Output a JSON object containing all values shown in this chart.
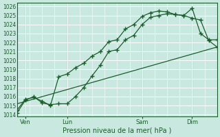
{
  "title": "Pression niveau de la mer( hPa )",
  "ylabel_values": [
    1014,
    1015,
    1016,
    1017,
    1018,
    1019,
    1020,
    1021,
    1022,
    1023,
    1024,
    1025,
    1026
  ],
  "ylim": [
    1013.8,
    1026.4
  ],
  "xlim": [
    0,
    48
  ],
  "background_color": "#c8e8e0",
  "grid_color": "#b0d8d0",
  "line_color": "#1a5c2a",
  "x_tick_labels": [
    "Ven",
    "Lun",
    "Sam",
    "Dim"
  ],
  "x_tick_positions": [
    2,
    12,
    30,
    42
  ],
  "vlines_x": [
    2,
    12,
    30,
    42
  ],
  "line1_x": [
    0,
    2,
    4,
    6,
    8,
    10,
    12,
    14,
    16,
    18,
    20,
    22,
    24,
    26,
    28,
    30,
    32,
    34,
    36,
    38,
    40,
    42,
    44,
    46,
    48
  ],
  "line1_y": [
    1014.2,
    1015.6,
    1016.0,
    1015.3,
    1015.1,
    1015.2,
    1015.2,
    1016.0,
    1017.0,
    1018.3,
    1019.5,
    1021.0,
    1021.2,
    1022.3,
    1022.8,
    1024.0,
    1024.8,
    1025.0,
    1025.2,
    1025.1,
    1025.0,
    1025.8,
    1023.0,
    1022.3,
    1022.3
  ],
  "line2_x": [
    0,
    2,
    4,
    6,
    8,
    10,
    12,
    14,
    16,
    18,
    20,
    22,
    24,
    26,
    28,
    30,
    32,
    34,
    36,
    38,
    40,
    42,
    44,
    46,
    48
  ],
  "line2_y": [
    1014.5,
    1015.7,
    1015.9,
    1015.5,
    1015.0,
    1018.2,
    1018.5,
    1019.2,
    1019.7,
    1020.5,
    1021.0,
    1022.1,
    1022.3,
    1023.5,
    1024.0,
    1024.9,
    1025.3,
    1025.5,
    1025.4,
    1025.1,
    1025.0,
    1024.7,
    1024.5,
    1022.2,
    1021.5
  ],
  "line3_x": [
    0,
    48
  ],
  "line3_y": [
    1015.2,
    1021.5
  ],
  "marker": "+",
  "marker_size": 4,
  "linewidth": 0.9
}
